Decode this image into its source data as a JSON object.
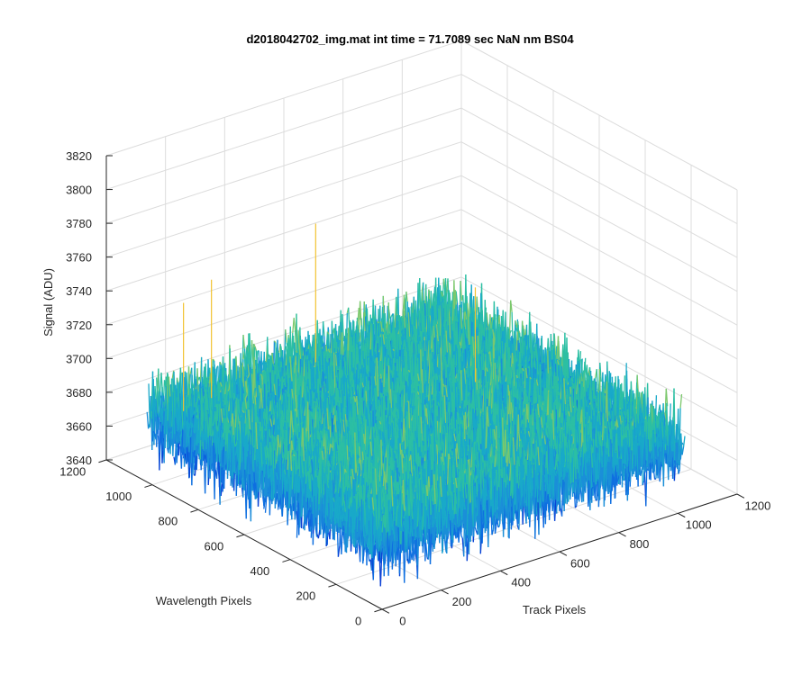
{
  "chart_data": {
    "type": "surface",
    "title": "d2018042702_img.mat int time = 71.7089 sec  NaN nm BS04",
    "xlabel": "Track Pixels",
    "ylabel": "Wavelength Pixels",
    "zlabel": "Signal (ADU)",
    "xlim": [
      0,
      1200
    ],
    "ylim": [
      0,
      1200
    ],
    "zlim": [
      3640,
      3820
    ],
    "xticks": [
      "0",
      "200",
      "400",
      "600",
      "800",
      "1000",
      "1200"
    ],
    "yticks": [
      "0",
      "200",
      "400",
      "600",
      "800",
      "1000",
      "1200"
    ],
    "zticks": [
      "3640",
      "3660",
      "3680",
      "3700",
      "3720",
      "3740",
      "3760",
      "3780",
      "3800",
      "3820"
    ],
    "data_extent": {
      "x": [
        1,
        1024
      ],
      "y": [
        1,
        1024
      ]
    },
    "mean_signal": 3680,
    "noise_range": [
      3645,
      3715
    ],
    "spike_max": 3762,
    "grid": true,
    "colormap": "parula",
    "colors": [
      "#0a3fd4",
      "#0f6fe0",
      "#1b8fd8",
      "#19a9c9",
      "#2cbfa3",
      "#7cc86d",
      "#d9bd3c",
      "#fbe21a"
    ]
  }
}
